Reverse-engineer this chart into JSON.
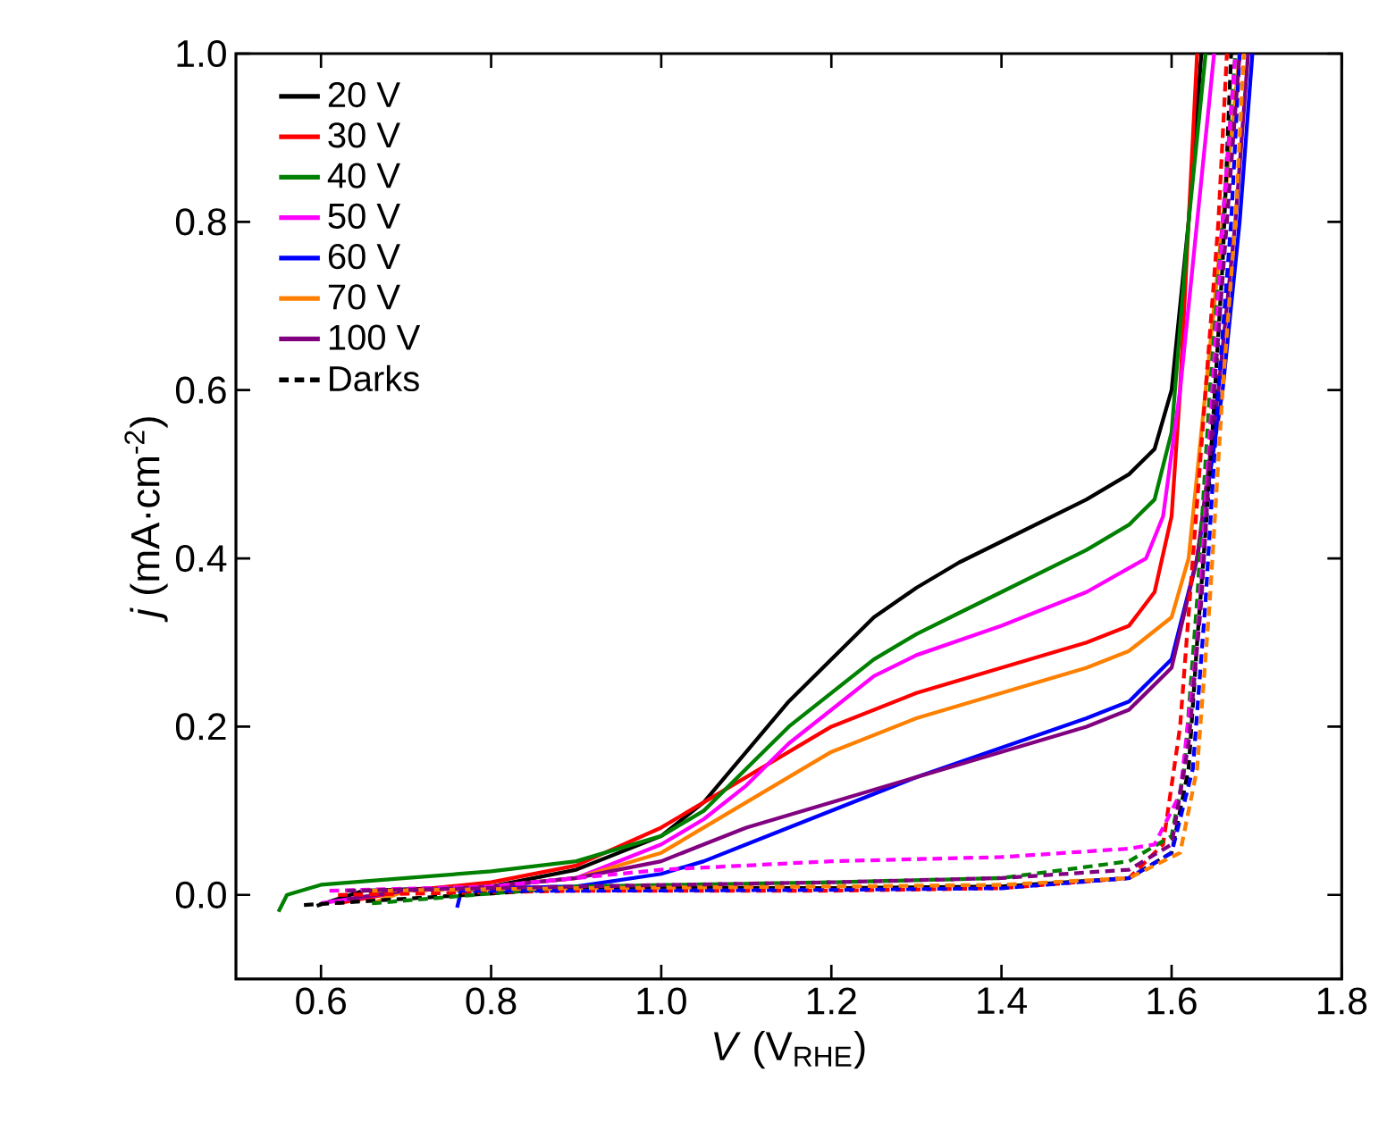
{
  "chart_data": {
    "type": "line",
    "xlabel": "*V* (V$_{RHE}$)",
    "ylabel": "*j* (mA·cm$^{-2}$)",
    "xlim": [
      0.5,
      1.8
    ],
    "ylim": [
      -0.1,
      1.0
    ],
    "xticks": [
      0.6,
      0.8,
      {
        "value": 1.0,
        "label": "1.0"
      },
      1.2,
      1.4,
      1.6,
      1.8
    ],
    "yticks": [
      {
        "value": 0,
        "label": "0.0"
      },
      0.2,
      0.4,
      0.6,
      0.8,
      {
        "value": 1.0,
        "label": "1.0"
      }
    ],
    "legend": "top left",
    "grid": false,
    "series": [
      {
        "name": "20 V",
        "color": "#000000",
        "line_style": "solid",
        "x": [
          0.595,
          0.65,
          0.8,
          0.9,
          1.0,
          1.05,
          1.1,
          1.15,
          1.2,
          1.25,
          1.3,
          1.35,
          1.4,
          1.45,
          1.5,
          1.55,
          1.58,
          1.6,
          1.62,
          1.635
        ],
        "values": [
          -0.013,
          0.005,
          0.01,
          0.03,
          0.07,
          0.11,
          0.17,
          0.23,
          0.28,
          0.33,
          0.365,
          0.395,
          0.42,
          0.445,
          0.47,
          0.5,
          0.53,
          0.6,
          0.8,
          1.0
        ]
      },
      {
        "name": "30 V",
        "color": "#ff0000",
        "line_style": "solid",
        "x": [
          0.62,
          0.7,
          0.8,
          0.9,
          1.0,
          1.05,
          1.1,
          1.15,
          1.2,
          1.3,
          1.4,
          1.5,
          1.55,
          1.58,
          1.6,
          1.61,
          1.62,
          1.63
        ],
        "values": [
          -0.01,
          0.005,
          0.015,
          0.035,
          0.08,
          0.11,
          0.14,
          0.17,
          0.2,
          0.24,
          0.27,
          0.3,
          0.32,
          0.36,
          0.45,
          0.6,
          0.8,
          1.0
        ]
      },
      {
        "name": "40 V",
        "color": "#008000",
        "line_style": "solid",
        "x": [
          0.55,
          0.56,
          0.6,
          0.7,
          0.8,
          0.9,
          1.0,
          1.05,
          1.1,
          1.15,
          1.2,
          1.25,
          1.3,
          1.35,
          1.4,
          1.5,
          1.55,
          1.58,
          1.6,
          1.62,
          1.64
        ],
        "values": [
          -0.02,
          0.0,
          0.012,
          0.02,
          0.028,
          0.04,
          0.07,
          0.1,
          0.15,
          0.2,
          0.24,
          0.28,
          0.31,
          0.335,
          0.36,
          0.41,
          0.44,
          0.47,
          0.55,
          0.8,
          1.0
        ]
      },
      {
        "name": "50 V",
        "color": "#ff00ff",
        "line_style": "solid",
        "x": [
          0.6,
          0.7,
          0.8,
          0.9,
          1.0,
          1.05,
          1.1,
          1.15,
          1.2,
          1.25,
          1.3,
          1.4,
          1.5,
          1.57,
          1.59,
          1.61,
          1.63,
          1.65
        ],
        "values": [
          -0.01,
          0.005,
          0.01,
          0.02,
          0.06,
          0.09,
          0.13,
          0.18,
          0.22,
          0.26,
          0.285,
          0.32,
          0.36,
          0.4,
          0.45,
          0.6,
          0.8,
          1.0
        ]
      },
      {
        "name": "60 V",
        "color": "#0000ff",
        "line_style": "solid",
        "x": [
          0.76,
          0.765,
          0.8,
          0.9,
          1.0,
          1.05,
          1.1,
          1.2,
          1.3,
          1.4,
          1.5,
          1.55,
          1.6,
          1.63,
          1.66,
          1.68,
          1.695
        ],
        "values": [
          -0.015,
          0.005,
          0.008,
          0.01,
          0.025,
          0.04,
          0.06,
          0.1,
          0.14,
          0.175,
          0.21,
          0.23,
          0.28,
          0.4,
          0.6,
          0.8,
          1.0
        ]
      },
      {
        "name": "70 V",
        "color": "#ff8000",
        "line_style": "solid",
        "x": [
          0.66,
          0.7,
          0.8,
          0.9,
          1.0,
          1.05,
          1.1,
          1.15,
          1.2,
          1.3,
          1.4,
          1.5,
          1.55,
          1.6,
          1.62,
          1.64,
          1.66,
          1.68
        ],
        "values": [
          -0.01,
          0.005,
          0.01,
          0.02,
          0.05,
          0.08,
          0.11,
          0.14,
          0.17,
          0.21,
          0.24,
          0.27,
          0.29,
          0.33,
          0.4,
          0.6,
          0.8,
          1.0
        ]
      },
      {
        "name": "100 V",
        "color": "#800080",
        "line_style": "solid",
        "x": [
          0.63,
          0.7,
          0.8,
          0.9,
          1.0,
          1.05,
          1.1,
          1.2,
          1.3,
          1.4,
          1.5,
          1.55,
          1.6,
          1.63,
          1.655,
          1.675,
          1.69
        ],
        "values": [
          -0.005,
          0.005,
          0.01,
          0.02,
          0.04,
          0.06,
          0.08,
          0.11,
          0.14,
          0.17,
          0.2,
          0.22,
          0.27,
          0.4,
          0.6,
          0.8,
          1.0
        ]
      },
      {
        "name": "Darks",
        "color": "#000000",
        "line_style": "dashed",
        "x": [
          0.58,
          0.9,
          1.2,
          1.4,
          1.55,
          1.6,
          1.62,
          1.63,
          1.645,
          1.66,
          1.67
        ],
        "values": [
          -0.012,
          0.008,
          0.008,
          0.01,
          0.02,
          0.05,
          0.15,
          0.3,
          0.5,
          0.75,
          1.0
        ]
      },
      {
        "color": "#ff0000",
        "line_style": "dashed",
        "x": [
          0.62,
          0.9,
          1.2,
          1.4,
          1.55,
          1.59,
          1.61,
          1.625,
          1.64,
          1.655,
          1.665
        ],
        "values": [
          0.0,
          0.005,
          0.005,
          0.008,
          0.02,
          0.06,
          0.2,
          0.4,
          0.6,
          0.8,
          1.0
        ]
      },
      {
        "color": "#008000",
        "line_style": "dashed",
        "x": [
          0.66,
          0.9,
          1.2,
          1.4,
          1.55,
          1.6,
          1.615,
          1.63,
          1.645,
          1.66,
          1.675
        ],
        "values": [
          -0.01,
          0.01,
          0.015,
          0.02,
          0.04,
          0.07,
          0.15,
          0.35,
          0.6,
          0.8,
          1.0
        ]
      },
      {
        "color": "#ff00ff",
        "line_style": "dashed",
        "x": [
          0.61,
          0.8,
          1.0,
          1.2,
          1.4,
          1.55,
          1.58,
          1.61,
          1.63,
          1.645,
          1.66,
          1.675
        ],
        "values": [
          0.005,
          0.01,
          0.03,
          0.04,
          0.045,
          0.055,
          0.06,
          0.12,
          0.3,
          0.55,
          0.8,
          1.0
        ]
      },
      {
        "color": "#0000ff",
        "line_style": "dashed",
        "x": [
          0.76,
          0.9,
          1.2,
          1.4,
          1.55,
          1.6,
          1.625,
          1.64,
          1.655,
          1.67,
          1.68
        ],
        "values": [
          0.005,
          0.005,
          0.006,
          0.008,
          0.02,
          0.05,
          0.15,
          0.35,
          0.6,
          0.8,
          1.0
        ]
      },
      {
        "color": "#ff8000",
        "line_style": "dashed",
        "x": [
          0.66,
          0.9,
          1.2,
          1.4,
          1.55,
          1.61,
          1.63,
          1.645,
          1.66,
          1.675,
          1.685
        ],
        "values": [
          0.005,
          0.008,
          0.01,
          0.012,
          0.02,
          0.05,
          0.15,
          0.35,
          0.6,
          0.8,
          1.0
        ]
      },
      {
        "color": "#800080",
        "line_style": "dashed",
        "x": [
          0.63,
          0.9,
          1.2,
          1.4,
          1.55,
          1.6,
          1.62,
          1.635,
          1.65,
          1.665,
          1.68
        ],
        "values": [
          0.005,
          0.01,
          0.015,
          0.02,
          0.03,
          0.06,
          0.18,
          0.35,
          0.6,
          0.8,
          1.0
        ]
      }
    ]
  }
}
